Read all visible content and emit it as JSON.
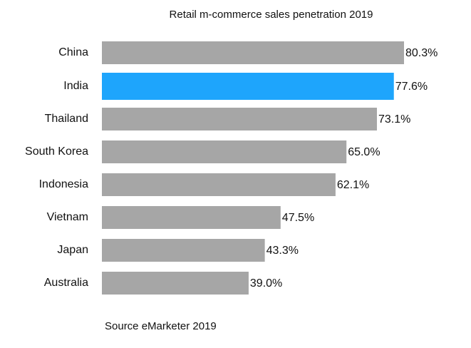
{
  "chart_data": {
    "type": "bar",
    "orientation": "horizontal",
    "title": "Retail m-commerce sales penetration 2019",
    "categories": [
      "China",
      "India",
      "Thailand",
      "South Korea",
      "Indonesia",
      "Vietnam",
      "Japan",
      "Australia"
    ],
    "values": [
      80.3,
      77.6,
      73.1,
      65.0,
      62.1,
      47.5,
      43.3,
      39.0
    ],
    "value_labels": [
      "80.3%",
      "77.6%",
      "73.1%",
      "65.0%",
      "62.1%",
      "47.5%",
      "43.3%",
      "39.0%"
    ],
    "highlight": "India",
    "colors": {
      "default": "#a6a6a6",
      "highlight": "#1ea5fc"
    },
    "xlim": [
      0,
      100
    ],
    "grid": false,
    "source": "Source eMarketer 2019"
  }
}
